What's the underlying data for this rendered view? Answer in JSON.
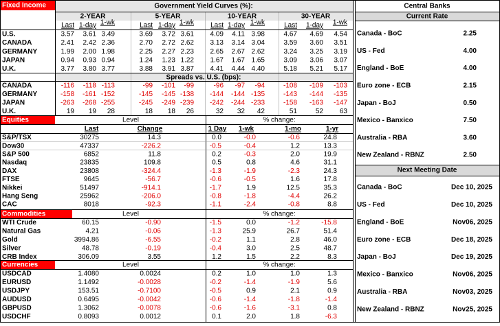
{
  "fixed_income": {
    "title": "Fixed Income",
    "yield_title": "Government Yield Curves (%):",
    "tenors": [
      "2-YEAR",
      "5-YEAR",
      "10-YEAR",
      "30-YEAR"
    ],
    "subheaders": [
      "Last",
      "1-day",
      "1-wk"
    ],
    "yields": [
      {
        "label": "U.S.",
        "values": [
          "3.57",
          "3.61",
          "3.49",
          "3.69",
          "3.72",
          "3.61",
          "4.09",
          "4.11",
          "3.98",
          "4.67",
          "4.69",
          "4.54"
        ]
      },
      {
        "label": "CANADA",
        "values": [
          "2.41",
          "2.42",
          "2.36",
          "2.70",
          "2.72",
          "2.62",
          "3.13",
          "3.14",
          "3.04",
          "3.59",
          "3.60",
          "3.51"
        ]
      },
      {
        "label": "GERMANY",
        "values": [
          "1.99",
          "2.00",
          "1.98",
          "2.25",
          "2.27",
          "2.23",
          "2.65",
          "2.67",
          "2.62",
          "3.24",
          "3.25",
          "3.19"
        ]
      },
      {
        "label": "JAPAN",
        "values": [
          "0.94",
          "0.93",
          "0.94",
          "1.24",
          "1.23",
          "1.22",
          "1.67",
          "1.67",
          "1.65",
          "3.09",
          "3.06",
          "3.07"
        ]
      },
      {
        "label": "U.K.",
        "values": [
          "3.77",
          "3.80",
          "3.77",
          "3.88",
          "3.91",
          "3.87",
          "4.41",
          "4.44",
          "4.40",
          "5.18",
          "5.21",
          "5.17"
        ]
      }
    ],
    "spreads_title": "Spreads vs. U.S. (bps):",
    "spreads": [
      {
        "label": "CANADA",
        "values": [
          "-116",
          "-118",
          "-113",
          "-99",
          "-101",
          "-99",
          "-96",
          "-97",
          "-94",
          "-108",
          "-109",
          "-103"
        ]
      },
      {
        "label": "GERMANY",
        "values": [
          "-158",
          "-161",
          "-152",
          "-145",
          "-145",
          "-138",
          "-144",
          "-144",
          "-135",
          "-143",
          "-144",
          "-135"
        ]
      },
      {
        "label": "JAPAN",
        "values": [
          "-263",
          "-268",
          "-255",
          "-245",
          "-249",
          "-239",
          "-242",
          "-244",
          "-233",
          "-158",
          "-163",
          "-147"
        ]
      },
      {
        "label": "U.K.",
        "values": [
          "19",
          "19",
          "28",
          "18",
          "18",
          "26",
          "32",
          "32",
          "42",
          "51",
          "52",
          "63"
        ]
      }
    ]
  },
  "equities": {
    "title": "Equities",
    "level_header": "Level",
    "change_header": "% change:",
    "columns": [
      "Last",
      "Change",
      "1 Day",
      "1-wk",
      "1-mo",
      "1-yr"
    ],
    "rows": [
      {
        "label": "S&P/TSX",
        "values": [
          "30275",
          "14.3",
          "0.0",
          "-0.0",
          "-0.6",
          "24.8"
        ]
      },
      {
        "label": "Dow30",
        "values": [
          "47337",
          "-226.2",
          "-0.5",
          "-0.4",
          "1.2",
          "13.3"
        ]
      },
      {
        "label": "S&P 500",
        "values": [
          "6852",
          "11.8",
          "0.2",
          "-0.3",
          "2.0",
          "19.9"
        ]
      },
      {
        "label": "Nasdaq",
        "values": [
          "23835",
          "109.8",
          "0.5",
          "0.8",
          "4.6",
          "31.1"
        ]
      },
      {
        "label": "DAX",
        "values": [
          "23808",
          "-324.4",
          "-1.3",
          "-1.9",
          "-2.3",
          "24.3"
        ]
      },
      {
        "label": "FTSE",
        "values": [
          "9645",
          "-56.7",
          "-0.6",
          "-0.5",
          "1.6",
          "17.8"
        ]
      },
      {
        "label": "Nikkei",
        "values": [
          "51497",
          "-914.1",
          "-1.7",
          "1.9",
          "12.5",
          "35.3"
        ]
      },
      {
        "label": "Hang Seng",
        "values": [
          "25962",
          "-206.0",
          "-0.8",
          "-1.8",
          "-4.4",
          "26.2"
        ]
      },
      {
        "label": "CAC",
        "values": [
          "8018",
          "-92.3",
          "-1.1",
          "-2.4",
          "-0.8",
          "8.8"
        ]
      }
    ]
  },
  "commodities": {
    "title": "Commodities",
    "level_header": "Level",
    "change_header": "% change:",
    "rows": [
      {
        "label": "WTI Crude",
        "values": [
          "60.15",
          "-0.90",
          "-1.5",
          "0.0",
          "-1.2",
          "-15.8"
        ]
      },
      {
        "label": "Natural Gas",
        "values": [
          "4.21",
          "-0.06",
          "-1.3",
          "25.9",
          "26.7",
          "51.4"
        ]
      },
      {
        "label": "Gold",
        "values": [
          "3994.86",
          "-6.55",
          "-0.2",
          "1.1",
          "2.8",
          "46.0"
        ]
      },
      {
        "label": "Silver",
        "values": [
          "48.78",
          "-0.19",
          "-0.4",
          "3.0",
          "2.5",
          "48.7"
        ]
      },
      {
        "label": "CRB Index",
        "values": [
          "306.09",
          "3.55",
          "1.2",
          "1.5",
          "2.2",
          "8.3"
        ]
      }
    ]
  },
  "currencies": {
    "title": "Currencies",
    "level_header": "Level",
    "change_header": "% change:",
    "rows": [
      {
        "label": "USDCAD",
        "values": [
          "1.4080",
          "0.0024",
          "0.2",
          "1.0",
          "1.0",
          "1.3"
        ]
      },
      {
        "label": "EURUSD",
        "values": [
          "1.1492",
          "-0.0028",
          "-0.2",
          "-1.4",
          "-1.9",
          "5.6"
        ]
      },
      {
        "label": "USDJPY",
        "values": [
          "153.51",
          "-0.7100",
          "-0.5",
          "0.9",
          "2.1",
          "0.9"
        ]
      },
      {
        "label": "AUDUSD",
        "values": [
          "0.6495",
          "-0.0042",
          "-0.6",
          "-1.4",
          "-1.8",
          "-1.4"
        ]
      },
      {
        "label": "GBPUSD",
        "values": [
          "1.3062",
          "-0.0078",
          "-0.6",
          "-1.6",
          "-3.1",
          "0.8"
        ]
      },
      {
        "label": "USDCHF",
        "values": [
          "0.8093",
          "0.0012",
          "0.1",
          "2.0",
          "1.8",
          "-6.3"
        ]
      }
    ]
  },
  "central_banks": {
    "title": "Central Banks",
    "rate_header": "Current Rate",
    "rates": [
      {
        "bank": "Canada - BoC",
        "value": "2.25"
      },
      {
        "bank": "US - Fed",
        "value": "4.00"
      },
      {
        "bank": "England - BoE",
        "value": "4.00"
      },
      {
        "bank": "Euro zone - ECB",
        "value": "2.15"
      },
      {
        "bank": "Japan - BoJ",
        "value": "0.50"
      },
      {
        "bank": "Mexico - Banxico",
        "value": "7.50"
      },
      {
        "bank": "Australia - RBA",
        "value": "3.60"
      },
      {
        "bank": "New Zealand - RBNZ",
        "value": "2.50"
      }
    ],
    "meeting_header": "Next Meeting Date",
    "meetings": [
      {
        "bank": "Canada - BoC",
        "date": "Dec 10, 2025"
      },
      {
        "bank": "US - Fed",
        "date": "Dec 10, 2025"
      },
      {
        "bank": "England - BoE",
        "date": "Nov06, 2025"
      },
      {
        "bank": "Euro zone - ECB",
        "date": "Dec 18, 2025"
      },
      {
        "bank": "Japan - BoJ",
        "date": "Dec 19, 2025"
      },
      {
        "bank": "Mexico - Banxico",
        "date": "Nov06, 2025"
      },
      {
        "bank": "Australia - RBA",
        "date": "Nov03, 2025"
      },
      {
        "bank": "New Zealand - RBNZ",
        "date": "Nov25, 2025"
      }
    ]
  }
}
